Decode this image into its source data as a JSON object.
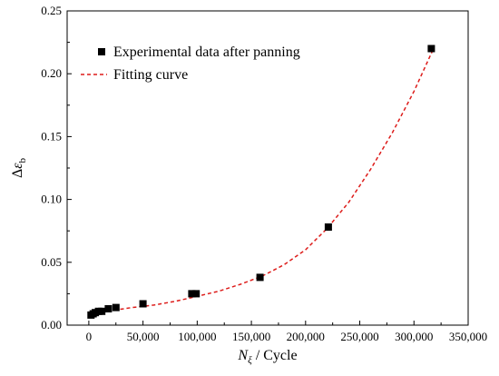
{
  "chart_data": {
    "type": "scatter",
    "xlabel": {
      "symbol": "N",
      "subscript": "ξ",
      "rest": " / Cycle"
    },
    "ylabel": {
      "prefix": "Δ",
      "symbol": "ε",
      "subscript": "b"
    },
    "xlim": [
      -20000,
      350000
    ],
    "ylim": [
      0,
      0.25
    ],
    "xticks": [
      0,
      50000,
      100000,
      150000,
      200000,
      250000,
      300000,
      350000
    ],
    "xtick_labels": [
      "0",
      "50,000",
      "100,000",
      "150,000",
      "200,000",
      "250,000",
      "300,000",
      "350,000"
    ],
    "yticks": [
      0.0,
      0.05,
      0.1,
      0.15,
      0.2,
      0.25
    ],
    "ytick_labels": [
      "0.00",
      "0.05",
      "0.10",
      "0.15",
      "0.20",
      "0.25"
    ],
    "legend_position": "top-left",
    "grid": false,
    "series": [
      {
        "name": "Experimental data after panning",
        "kind": "scatter",
        "marker": "square",
        "color": "#000000",
        "x": [
          2000,
          4000,
          6000,
          9000,
          12000,
          18000,
          25000,
          50000,
          95000,
          99000,
          158000,
          221000,
          316000
        ],
        "y": [
          0.008,
          0.009,
          0.01,
          0.011,
          0.011,
          0.013,
          0.014,
          0.017,
          0.025,
          0.025,
          0.038,
          0.078,
          0.22
        ]
      },
      {
        "name": "Fitting curve",
        "kind": "line",
        "style": "dashed",
        "color": "#dd1c1a",
        "x": [
          0,
          20000,
          40000,
          60000,
          80000,
          100000,
          120000,
          140000,
          160000,
          180000,
          200000,
          220000,
          240000,
          260000,
          280000,
          300000,
          318000
        ],
        "y": [
          0.009,
          0.0115,
          0.014,
          0.016,
          0.019,
          0.023,
          0.027,
          0.0325,
          0.039,
          0.048,
          0.06,
          0.077,
          0.098,
          0.124,
          0.153,
          0.186,
          0.22
        ]
      }
    ]
  }
}
